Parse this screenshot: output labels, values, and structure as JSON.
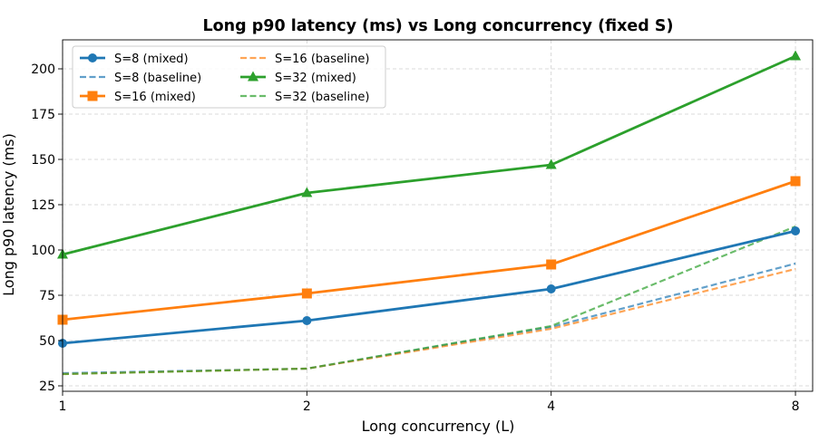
{
  "chart_data": {
    "type": "line",
    "title": "Long p90 latency (ms) vs Long concurrency (fixed S)",
    "xlabel": "Long concurrency (L)",
    "ylabel": "Long p90 latency (ms)",
    "x": [
      1,
      2,
      4,
      8
    ],
    "x_ticks": [
      1,
      2,
      4,
      8
    ],
    "x_scale": "log2",
    "xlim": [
      1,
      8.4
    ],
    "ylim": [
      22,
      216
    ],
    "y_ticks": [
      25,
      50,
      75,
      100,
      125,
      150,
      175,
      200
    ],
    "grid": true,
    "legend_position": "top-left",
    "series": [
      {
        "name": "S=8 (mixed)",
        "values": [
          48.5,
          61,
          78.5,
          110.5
        ],
        "color": "#1f77b4",
        "style": "solid",
        "marker": "circle"
      },
      {
        "name": "S=8 (baseline)",
        "values": [
          32,
          34.5,
          57.5,
          92.5
        ],
        "color": "#1f77b4",
        "style": "dashed",
        "marker": "none"
      },
      {
        "name": "S=16 (mixed)",
        "values": [
          61.5,
          76,
          92,
          138
        ],
        "color": "#ff7f0e",
        "style": "solid",
        "marker": "square"
      },
      {
        "name": "S=16 (baseline)",
        "values": [
          31.5,
          34.5,
          56.5,
          89.5
        ],
        "color": "#ff7f0e",
        "style": "dashed",
        "marker": "none"
      },
      {
        "name": "S=32 (mixed)",
        "values": [
          97.5,
          131.5,
          147,
          207
        ],
        "color": "#2ca02c",
        "style": "solid",
        "marker": "triangle"
      },
      {
        "name": "S=32 (baseline)",
        "values": [
          31.5,
          34.5,
          58,
          113
        ],
        "color": "#2ca02c",
        "style": "dashed",
        "marker": "none"
      }
    ]
  }
}
